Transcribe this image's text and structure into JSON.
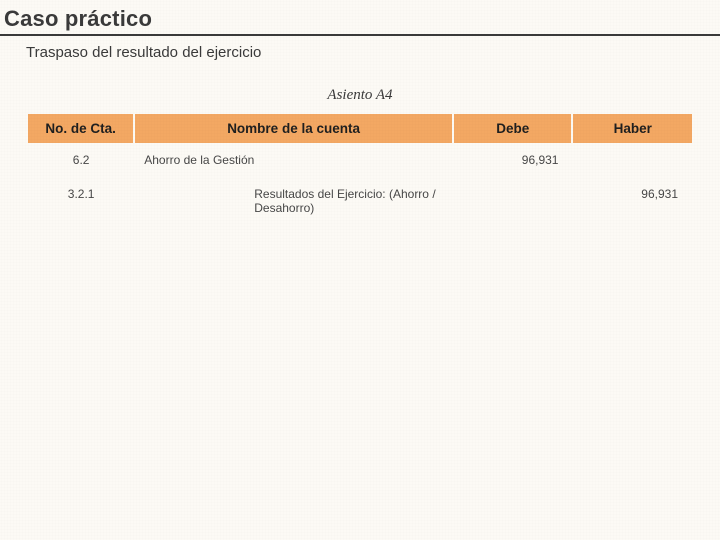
{
  "title": "Caso práctico",
  "subtitle": "Traspaso del resultado del ejercicio",
  "entry_label": "Asiento A4",
  "table": {
    "header_bg": "#f3a863",
    "columns": [
      "No. de Cta.",
      "Nombre de la cuenta",
      "Debe",
      "Haber"
    ],
    "rows": [
      {
        "num": "6.2",
        "name": "Ahorro de la Gestión",
        "name_indent": false,
        "debe": "96,931",
        "haber": ""
      },
      {
        "num": "3.2.1",
        "name": "Resultados del Ejercicio: (Ahorro / Desahorro)",
        "name_indent": true,
        "debe": "",
        "haber": "96,931"
      }
    ]
  }
}
